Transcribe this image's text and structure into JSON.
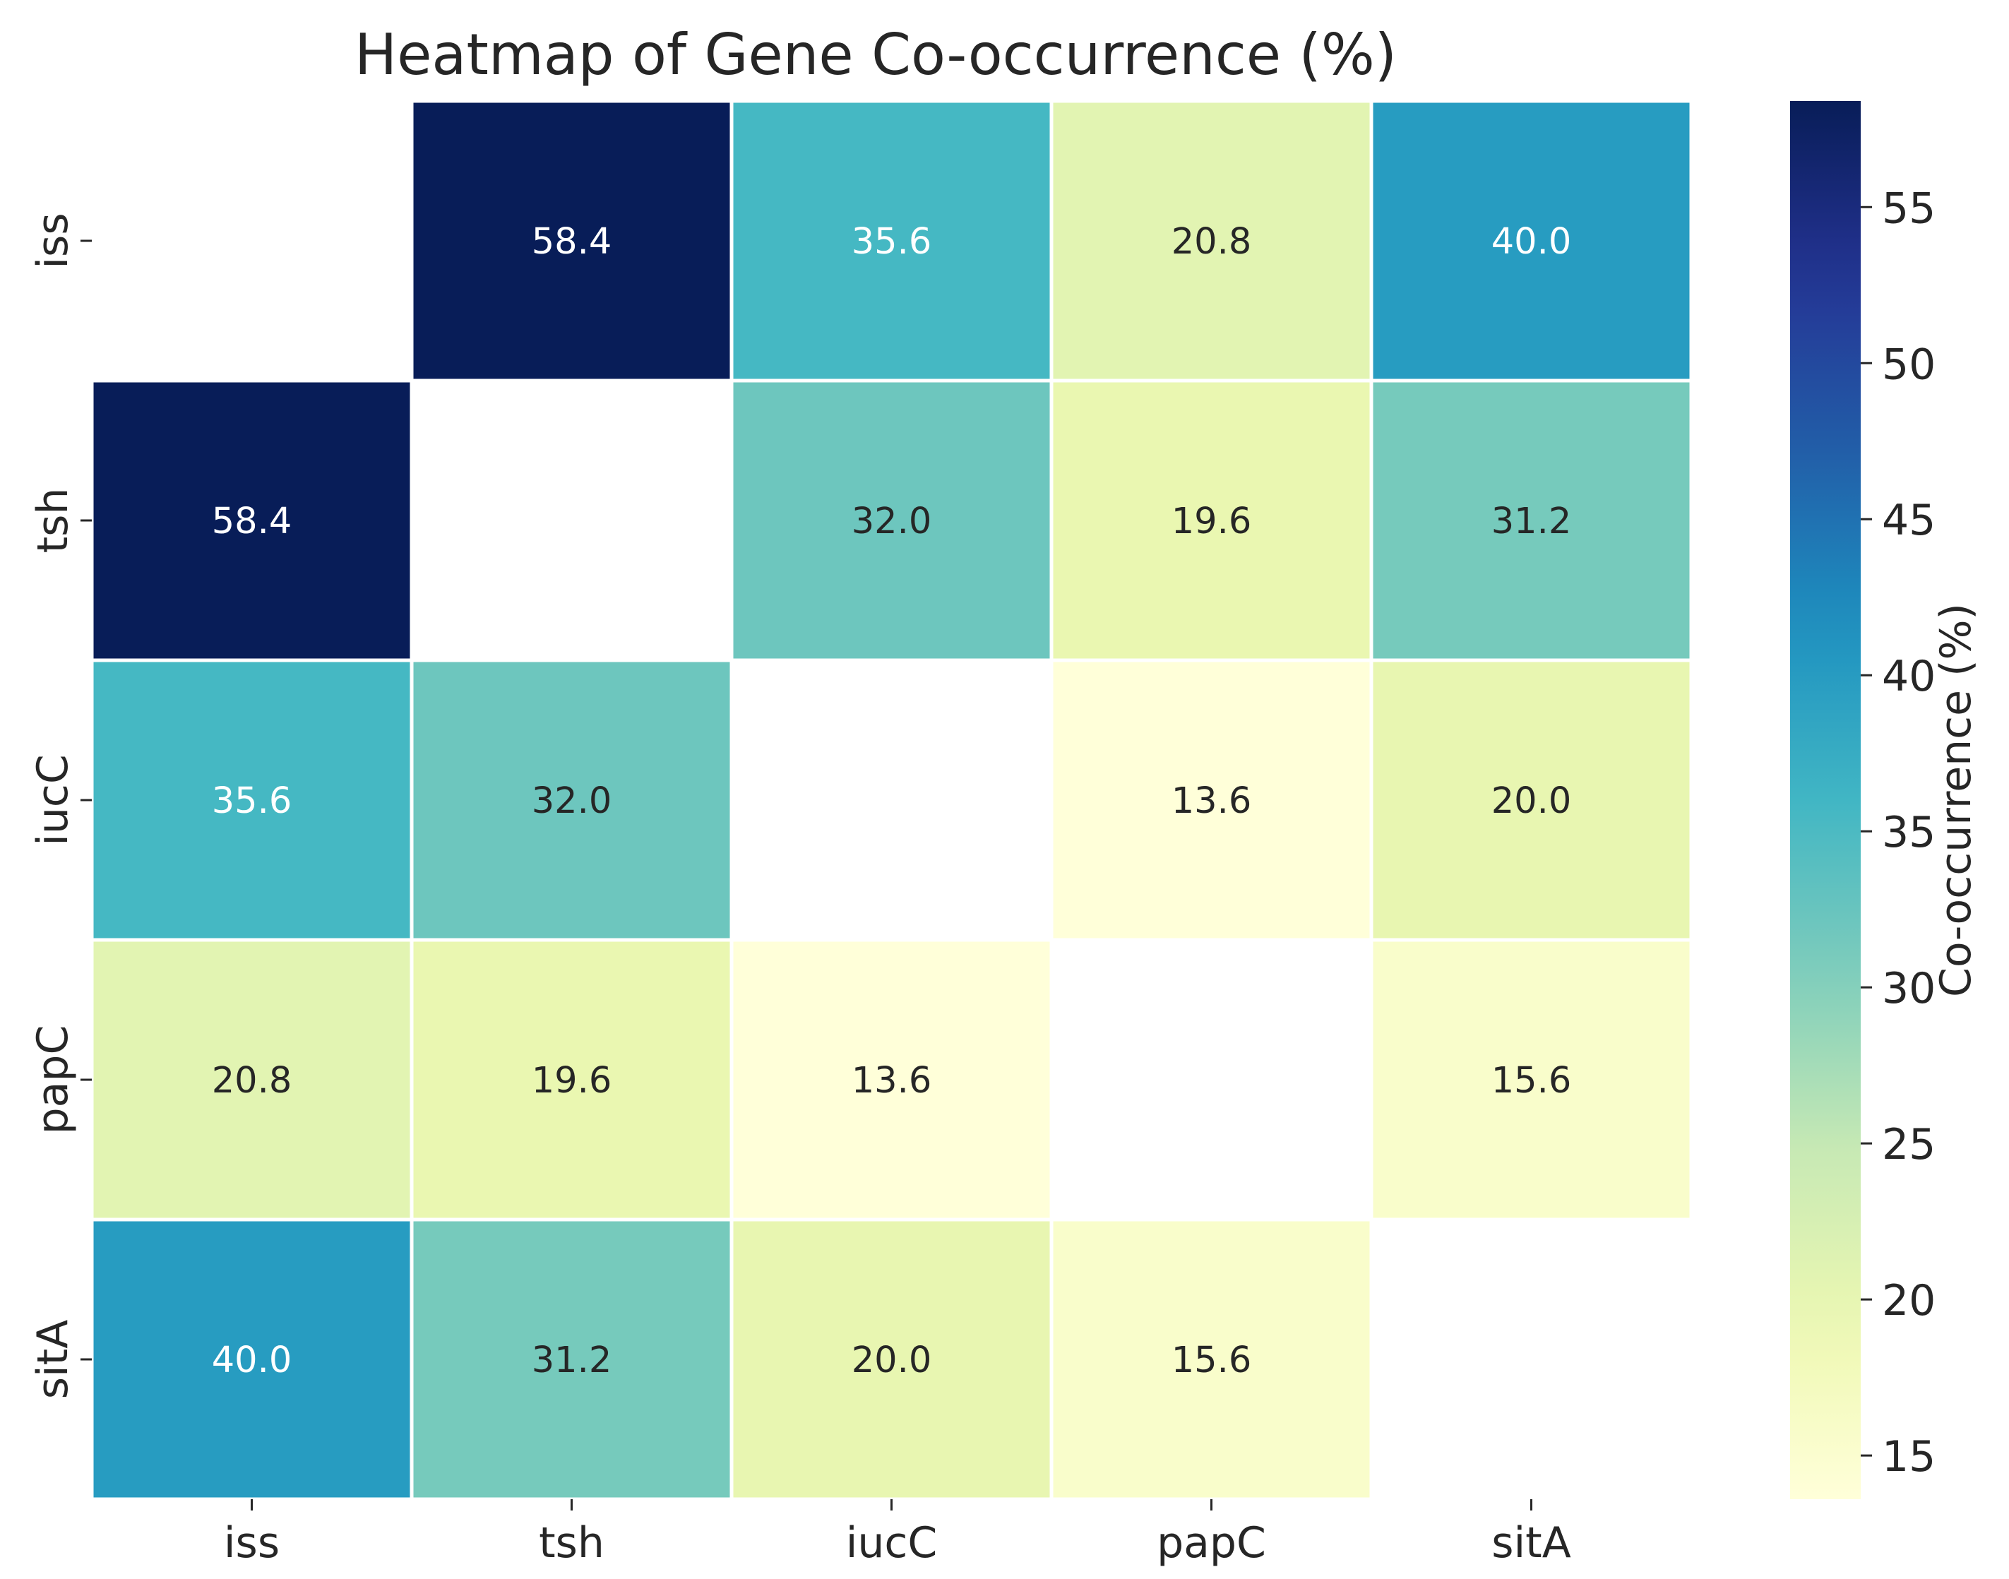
{
  "chart_data": {
    "type": "heatmap",
    "title": "Heatmap of Gene Co-occurrence (%)",
    "row_labels": [
      "iss",
      "tsh",
      "iucC",
      "papC",
      "sitA"
    ],
    "col_labels": [
      "iss",
      "tsh",
      "iucC",
      "papC",
      "sitA"
    ],
    "values": [
      [
        null,
        58.4,
        35.6,
        20.8,
        40.0
      ],
      [
        58.4,
        null,
        32.0,
        19.6,
        31.2
      ],
      [
        35.6,
        32.0,
        null,
        13.6,
        20.0
      ],
      [
        20.8,
        19.6,
        13.6,
        null,
        15.6
      ],
      [
        40.0,
        31.2,
        20.0,
        15.6,
        null
      ]
    ],
    "diagonal_masked": true,
    "colormap": "YlGnBu",
    "colorbar": {
      "label": "Co-occurrence (%)",
      "range": [
        13.6,
        58.4
      ],
      "ticks": [
        15,
        20,
        25,
        30,
        35,
        40,
        45,
        50,
        55
      ]
    },
    "cell_text_decimals": 1
  }
}
